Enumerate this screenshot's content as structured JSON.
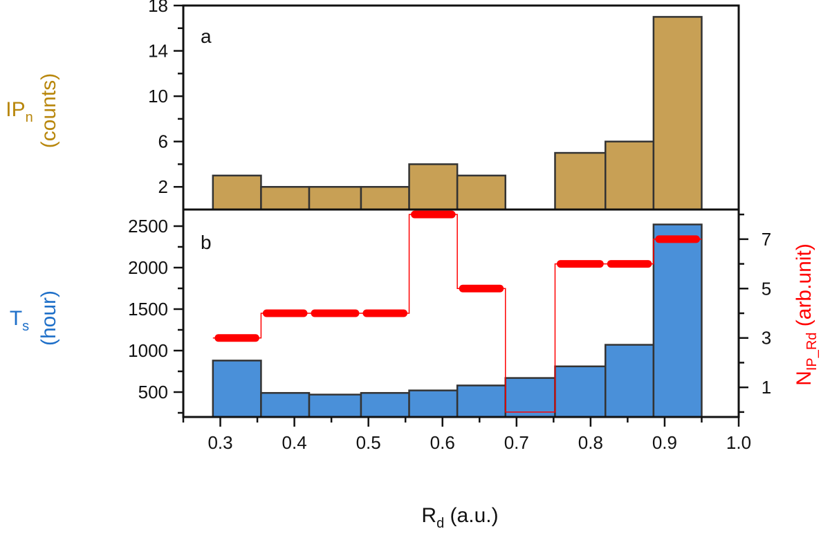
{
  "chart_data": [
    {
      "panel": "a",
      "type": "bar",
      "ylabel": "IP",
      "ylabel_sub": "n",
      "ylabel_unit": "(counts)",
      "ylabel_color": "#B8860B",
      "bar_color": "#C8A055",
      "xlim": [
        0.25,
        1.0
      ],
      "ylim": [
        0,
        18
      ],
      "yticks": [
        2,
        6,
        10,
        14,
        18
      ],
      "bins": [
        {
          "x0": 0.29,
          "x1": 0.355,
          "value": 3
        },
        {
          "x0": 0.355,
          "x1": 0.42,
          "value": 2
        },
        {
          "x0": 0.42,
          "x1": 0.49,
          "value": 2
        },
        {
          "x0": 0.49,
          "x1": 0.555,
          "value": 2
        },
        {
          "x0": 0.555,
          "x1": 0.62,
          "value": 4
        },
        {
          "x0": 0.62,
          "x1": 0.685,
          "value": 3
        },
        {
          "x0": 0.752,
          "x1": 0.82,
          "value": 5
        },
        {
          "x0": 0.82,
          "x1": 0.885,
          "value": 6
        },
        {
          "x0": 0.885,
          "x1": 0.95,
          "value": 17
        }
      ]
    },
    {
      "panel": "b",
      "type": "bar",
      "ylabel": "T",
      "ylabel_sub": "s",
      "ylabel_unit": "(hour)",
      "ylabel_color": "#1E6FC8",
      "bar_color": "#4A90D9",
      "xlabel": "R",
      "xlabel_sub": "d",
      "xlabel_unit": " (a.u.)",
      "xlim": [
        0.25,
        1.0
      ],
      "xticks": [
        "0.3",
        "0.4",
        "0.5",
        "0.6",
        "0.7",
        "0.8",
        "0.9",
        "1.0"
      ],
      "ylim": [
        200,
        2700
      ],
      "yticks": [
        500,
        1000,
        1500,
        2000,
        2500
      ],
      "bins": [
        {
          "x0": 0.29,
          "x1": 0.355,
          "value": 880
        },
        {
          "x0": 0.355,
          "x1": 0.42,
          "value": 490
        },
        {
          "x0": 0.42,
          "x1": 0.49,
          "value": 470
        },
        {
          "x0": 0.49,
          "x1": 0.555,
          "value": 490
        },
        {
          "x0": 0.555,
          "x1": 0.62,
          "value": 520
        },
        {
          "x0": 0.62,
          "x1": 0.685,
          "value": 580
        },
        {
          "x0": 0.685,
          "x1": 0.752,
          "value": 670
        },
        {
          "x0": 0.752,
          "x1": 0.82,
          "value": 810
        },
        {
          "x0": 0.82,
          "x1": 0.885,
          "value": 1070
        },
        {
          "x0": 0.885,
          "x1": 0.95,
          "value": 2520
        }
      ],
      "right_axis": {
        "label": "N",
        "label_sub": "IP_Rd",
        "label_unit": " (arb.unit)",
        "color": "#FF0000",
        "ylim": [
          -0.2,
          8.2
        ],
        "yticks": [
          1,
          3,
          5,
          7
        ],
        "steps": [
          {
            "x0": 0.29,
            "x1": 0.355,
            "value": 3
          },
          {
            "x0": 0.355,
            "x1": 0.42,
            "value": 4
          },
          {
            "x0": 0.42,
            "x1": 0.49,
            "value": 4
          },
          {
            "x0": 0.49,
            "x1": 0.555,
            "value": 4
          },
          {
            "x0": 0.555,
            "x1": 0.62,
            "value": 8
          },
          {
            "x0": 0.62,
            "x1": 0.685,
            "value": 5
          },
          {
            "x0": 0.685,
            "x1": 0.752,
            "value": 0
          },
          {
            "x0": 0.752,
            "x1": 0.82,
            "value": 6
          },
          {
            "x0": 0.82,
            "x1": 0.885,
            "value": 6
          },
          {
            "x0": 0.885,
            "x1": 0.95,
            "value": 7
          }
        ]
      }
    }
  ]
}
